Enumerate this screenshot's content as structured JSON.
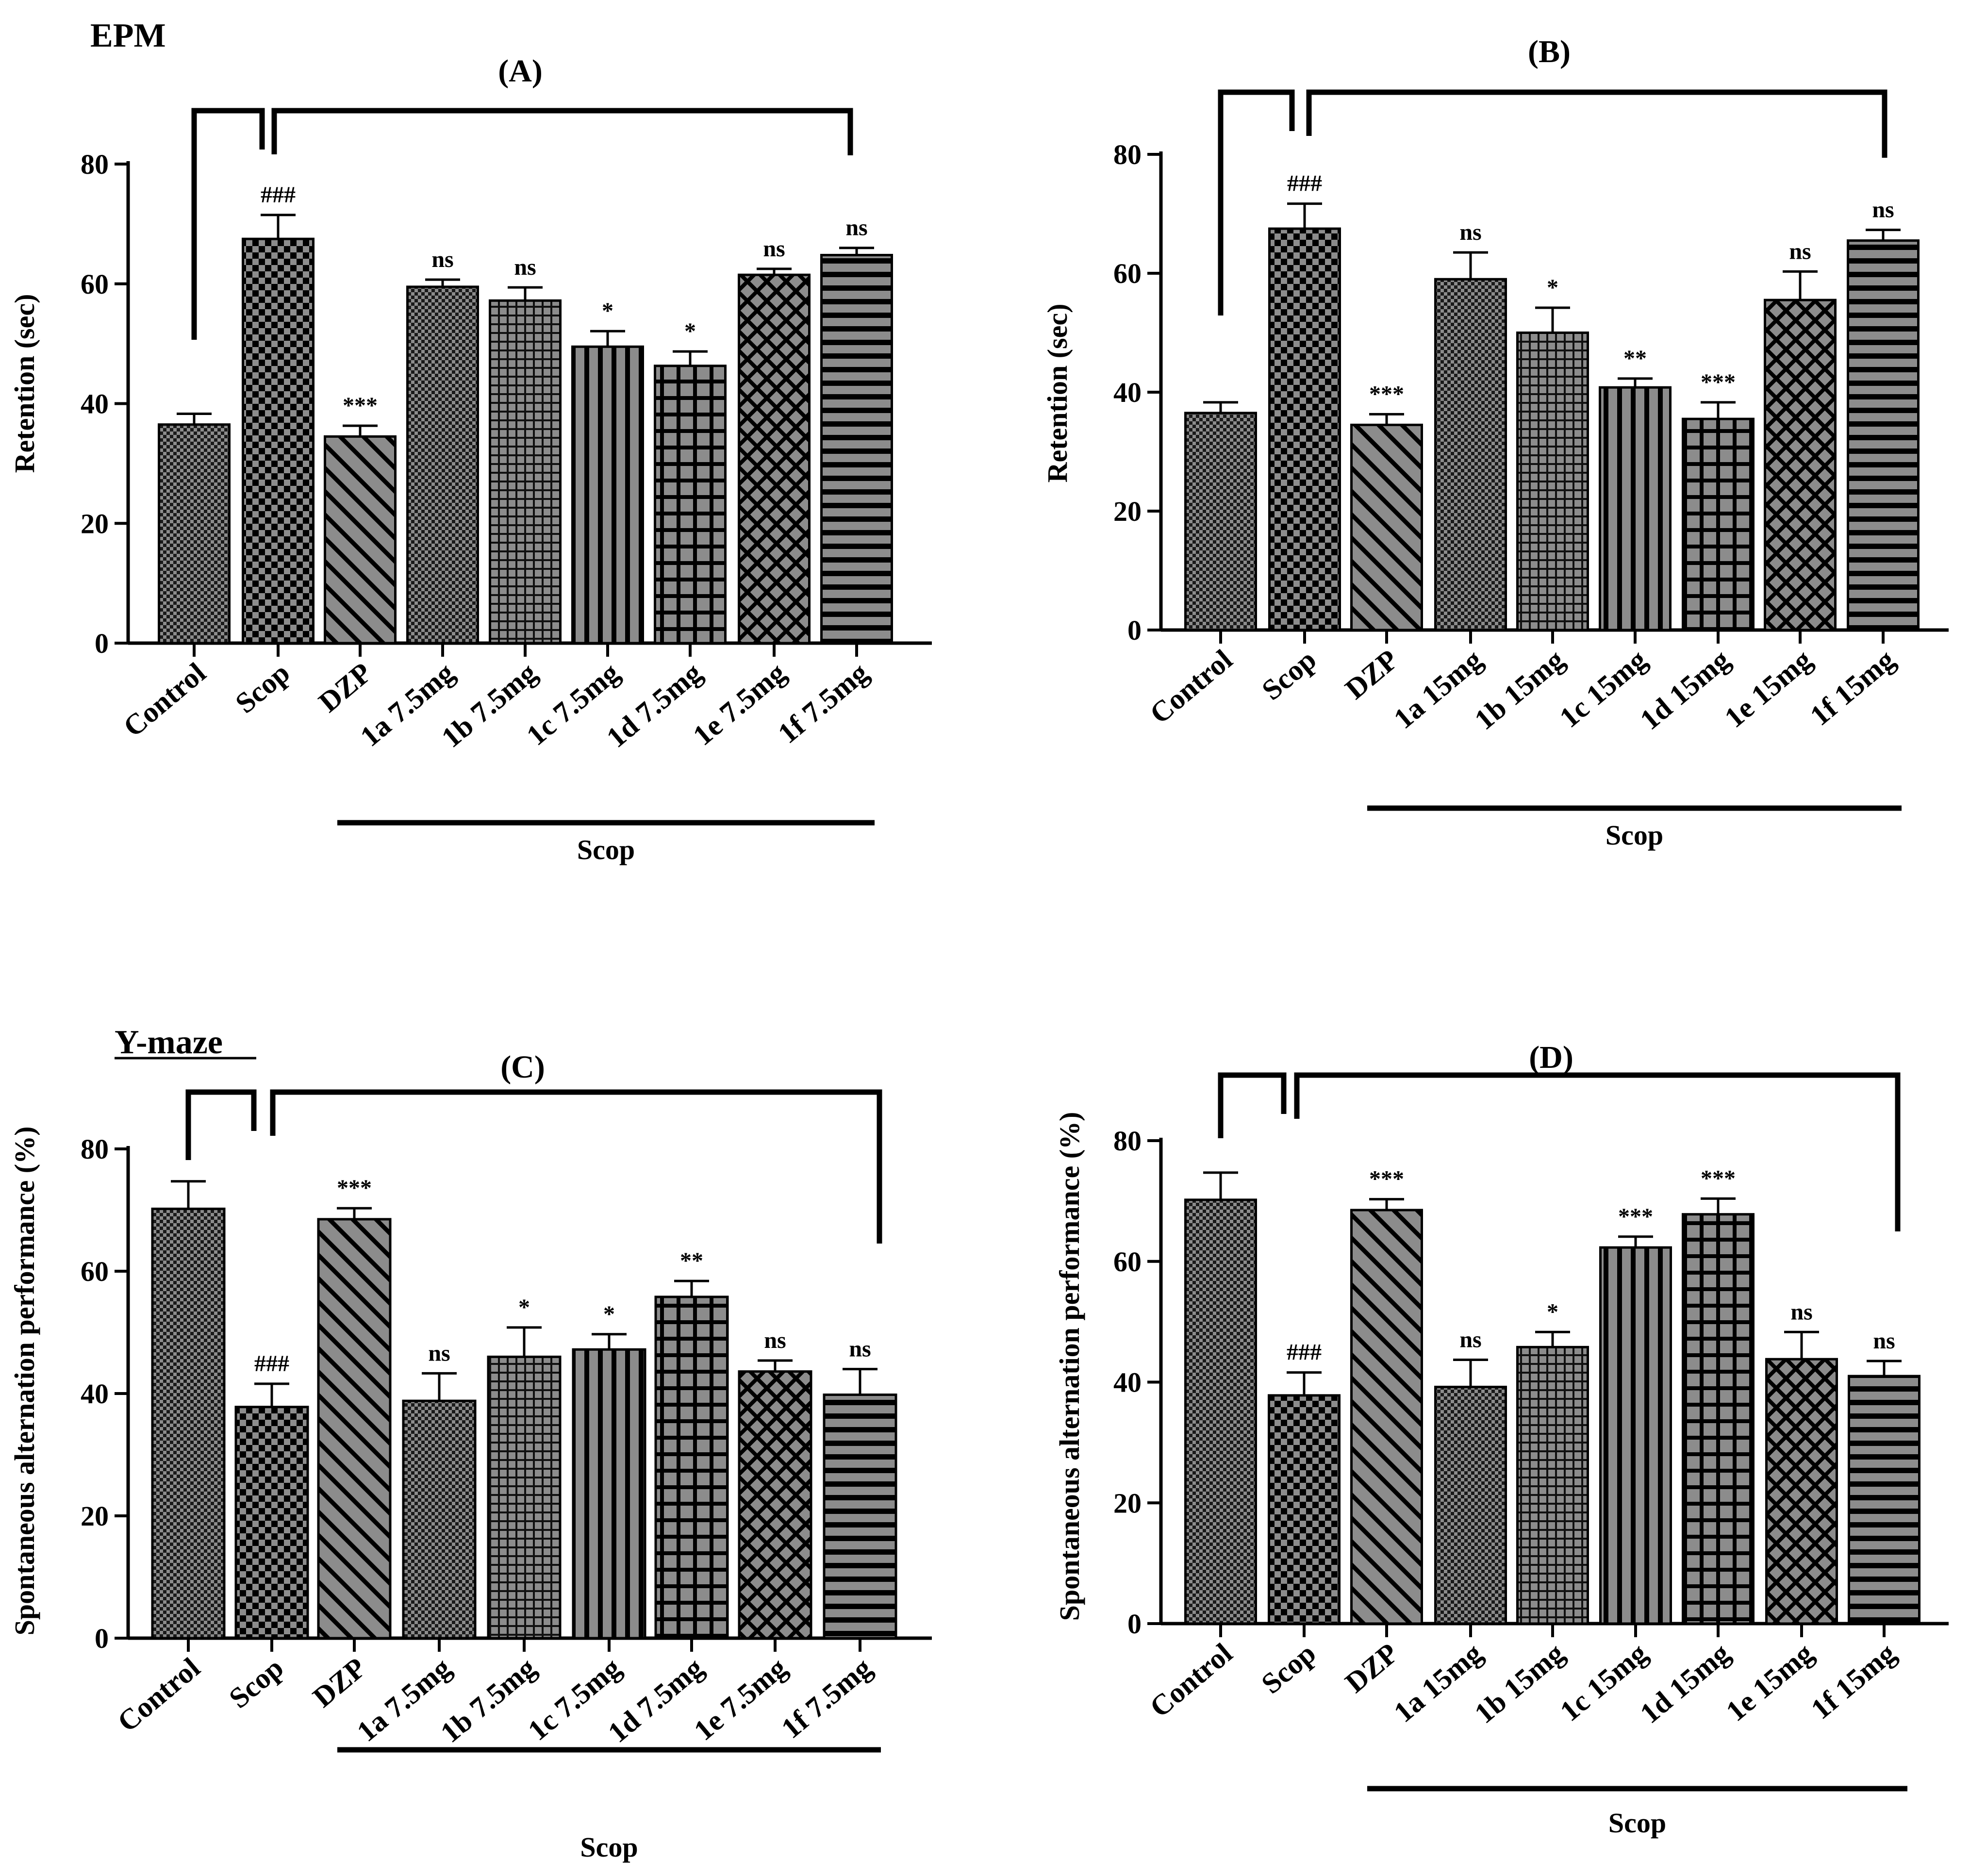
{
  "figure": {
    "section_titles": [
      "EPM",
      "Y-maze"
    ],
    "colors": {
      "bar_fill": "#8c8c8c",
      "pattern_ink": "#000000",
      "axis": "#000000",
      "background": "#ffffff"
    }
  },
  "chart_data": [
    {
      "type": "bar",
      "panel": "(A)",
      "section": "EPM",
      "ylabel": "Retention (sec)",
      "ylim": [
        0,
        80
      ],
      "yticks": [
        "0",
        "20",
        "40",
        "60",
        "80"
      ],
      "categories": [
        "Control",
        "Scop",
        "DZP",
        "1a 7.5mg",
        "1b 7.5mg",
        "1c 7.5mg",
        "1d 7.5mg",
        "1e 7.5mg",
        "1f 7.5mg"
      ],
      "values": [
        36.5,
        67.5,
        34.5,
        59.5,
        57.2,
        49.5,
        46.3,
        61.5,
        64.8
      ],
      "errors": [
        1.8,
        4.0,
        1.8,
        1.2,
        2.2,
        2.6,
        2.4,
        1.0,
        1.2
      ],
      "patterns": [
        "fine-check",
        "check",
        "diag",
        "fine-check",
        "grid",
        "vert",
        "square-grid",
        "crosshatch",
        "horiz"
      ],
      "significance": [
        "",
        "###",
        "***",
        "ns",
        "ns",
        "*",
        "*",
        "ns",
        "ns"
      ],
      "group_label": "Scop",
      "grid": false
    },
    {
      "type": "bar",
      "panel": "(B)",
      "section": "EPM",
      "ylabel": "Retention (sec)",
      "ylim": [
        0,
        80
      ],
      "yticks": [
        "0",
        "20",
        "40",
        "60",
        "80"
      ],
      "categories": [
        "Control",
        "Scop",
        "DZP",
        "1a 15mg",
        "1b 15mg",
        "1c 15mg",
        "1d 15mg",
        "1e 15mg",
        "1f 15mg"
      ],
      "values": [
        36.5,
        67.5,
        34.5,
        59,
        50,
        40.8,
        35.5,
        55.5,
        65.5
      ],
      "errors": [
        1.8,
        4.2,
        1.8,
        4.5,
        4.2,
        1.5,
        2.8,
        4.8,
        1.8
      ],
      "patterns": [
        "fine-check",
        "check",
        "diag",
        "fine-check",
        "grid",
        "vert",
        "square-grid",
        "crosshatch",
        "horiz"
      ],
      "significance": [
        "",
        "###",
        "***",
        "ns",
        "*",
        "**",
        "***",
        "ns",
        "ns"
      ],
      "group_label": "Scop",
      "grid": false
    },
    {
      "type": "bar",
      "panel": "(C)",
      "section": "Y-maze",
      "ylabel": "Spontaneous alternation performance (%)",
      "ylim": [
        0,
        80
      ],
      "yticks": [
        "0",
        "20",
        "40",
        "60",
        "80"
      ],
      "categories": [
        "Control",
        "Scop",
        "DZP",
        "1a 7.5mg",
        "1b 7.5mg",
        "1c 7.5mg",
        "1d 7.5mg",
        "1e 7.5mg",
        "1f 7.5mg"
      ],
      "values": [
        70.2,
        37.8,
        68.5,
        38.8,
        46,
        47.2,
        55.8,
        43.6,
        39.8
      ],
      "errors": [
        4.5,
        3.8,
        1.8,
        4.5,
        4.8,
        2.5,
        2.6,
        1.8,
        4.2
      ],
      "patterns": [
        "fine-check",
        "check",
        "diag",
        "fine-check",
        "grid",
        "vert",
        "square-grid",
        "crosshatch",
        "horiz"
      ],
      "significance": [
        "",
        "###",
        "***",
        "ns",
        "*",
        "*",
        "**",
        "ns",
        "ns"
      ],
      "group_label": "Scop",
      "grid": false
    },
    {
      "type": "bar",
      "panel": "(D)",
      "section": "Y-maze",
      "ylabel": "Spontaneous alternation performance (%)",
      "ylim": [
        0,
        80
      ],
      "yticks": [
        "0",
        "20",
        "40",
        "60",
        "80"
      ],
      "categories": [
        "Control",
        "Scop",
        "DZP",
        "1a 15mg",
        "1b 15mg",
        "1c 15mg",
        "1d 15mg",
        "1e 15mg",
        "1f 15mg"
      ],
      "values": [
        70.2,
        37.8,
        68.5,
        39.2,
        45.8,
        62.3,
        67.8,
        43.8,
        41
      ],
      "errors": [
        4.5,
        3.8,
        1.8,
        4.5,
        2.5,
        1.8,
        2.6,
        4.5,
        2.5
      ],
      "patterns": [
        "fine-check",
        "check",
        "diag",
        "fine-check",
        "grid",
        "vert",
        "square-grid",
        "crosshatch",
        "horiz"
      ],
      "significance": [
        "",
        "###",
        "***",
        "ns",
        "*",
        "***",
        "***",
        "ns",
        "ns"
      ],
      "group_label": "Scop",
      "grid": false
    }
  ]
}
